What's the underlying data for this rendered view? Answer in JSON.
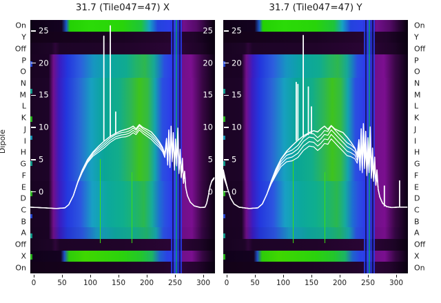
{
  "figure": {
    "ylabel": "Dipole",
    "background": "#ffffff",
    "text_color": "#1a1a1a",
    "curve_color": "#ffffff"
  },
  "dipole_labels": [
    "On",
    "Y",
    "Off",
    "P",
    "O",
    "N",
    "M",
    "L",
    "K",
    "J",
    "I",
    "H",
    "G",
    "F",
    "E",
    "D",
    "C",
    "B",
    "A",
    "Off",
    "X",
    "On"
  ],
  "xtick_labels": [
    "0",
    "50",
    "100",
    "150",
    "200",
    "250",
    "300"
  ],
  "inner_ytick_values": [
    25,
    20,
    15,
    10,
    5,
    0
  ],
  "chart_data": [
    {
      "type": "heatmap",
      "title": "31.7 (Tile047=47) X",
      "x_axis": {
        "ticks": [
          0,
          50,
          100,
          150,
          200,
          250,
          300
        ],
        "range": [
          -6,
          320.7
        ]
      },
      "y_categories": [
        "On",
        "Y",
        "Off",
        "P",
        "O",
        "N",
        "M",
        "L",
        "K",
        "J",
        "I",
        "H",
        "G",
        "F",
        "E",
        "D",
        "C",
        "B",
        "A",
        "Off",
        "X",
        "On"
      ],
      "overlay_axis": {
        "ticks": [
          25,
          20,
          15,
          10,
          5,
          0
        ]
      },
      "right_inner_ticks": true,
      "line_main": [
        [
          -6,
          -2.4
        ],
        [
          20,
          -2.5
        ],
        [
          40,
          -2.6
        ],
        [
          55,
          -2.5
        ],
        [
          62,
          -2.0
        ],
        [
          70,
          -0.6
        ],
        [
          78,
          1.6
        ],
        [
          86,
          3.4
        ],
        [
          95,
          5.0
        ],
        [
          105,
          6.2
        ],
        [
          115,
          7.1
        ],
        [
          125,
          7.9
        ],
        [
          135,
          8.6
        ],
        [
          145,
          9.1
        ],
        [
          155,
          9.5
        ],
        [
          163,
          9.7
        ],
        [
          170,
          9.9
        ],
        [
          176,
          10.2
        ],
        [
          181,
          9.8
        ],
        [
          187,
          10.45
        ],
        [
          193,
          10.0
        ],
        [
          200,
          9.7
        ],
        [
          208,
          9.3
        ],
        [
          215,
          8.6
        ],
        [
          222,
          7.8
        ],
        [
          228,
          6.9
        ],
        [
          232,
          5.9
        ],
        [
          235,
          8.3
        ],
        [
          237,
          4.6
        ],
        [
          239,
          9.6
        ],
        [
          241,
          4.2
        ],
        [
          243,
          10.2
        ],
        [
          245,
          5.3
        ],
        [
          247,
          9.2
        ],
        [
          249,
          3.8
        ],
        [
          251,
          8.2
        ],
        [
          253,
          4.6
        ],
        [
          255,
          9.9
        ],
        [
          257,
          3.2
        ],
        [
          259,
          6.6
        ],
        [
          261,
          2.4
        ],
        [
          263,
          5.2
        ],
        [
          265,
          1.4
        ],
        [
          267,
          3.2
        ],
        [
          269,
          0.6
        ],
        [
          272,
          -0.6
        ],
        [
          277,
          -1.6
        ],
        [
          284,
          -2.2
        ],
        [
          295,
          -2.45
        ],
        [
          303,
          -2.4
        ],
        [
          306,
          -1.8
        ],
        [
          309,
          -0.6
        ],
        [
          312,
          0.8
        ],
        [
          315,
          1.7
        ],
        [
          319,
          2.2
        ]
      ],
      "line_spikes": [
        [
          124,
          24.2,
          8.0
        ],
        [
          135.5,
          25.8,
          8.6
        ],
        [
          145,
          12.4,
          9.1
        ]
      ],
      "sub_traces": [
        {
          "dy": -0.3,
          "amp": 0.12
        },
        {
          "dy": -0.65,
          "amp": 0.12
        },
        {
          "dy": -1.0,
          "amp": 0.15
        }
      ]
    },
    {
      "type": "heatmap",
      "title": "31.7 (Tile047=47) Y",
      "x_axis": {
        "ticks": [
          0,
          50,
          100,
          150,
          200,
          250,
          300
        ],
        "range": [
          -6,
          320.7
        ]
      },
      "y_categories": [
        "On",
        "Y",
        "Off",
        "P",
        "O",
        "N",
        "M",
        "L",
        "K",
        "J",
        "I",
        "H",
        "G",
        "F",
        "E",
        "D",
        "C",
        "B",
        "A",
        "Off",
        "X",
        "On"
      ],
      "overlay_axis": {
        "ticks": [
          25,
          20,
          15,
          10,
          5,
          0
        ]
      },
      "right_inner_ticks": false,
      "line_main": [
        [
          -6,
          3.4
        ],
        [
          -2,
          1.8
        ],
        [
          2,
          0.4
        ],
        [
          7,
          -1.0
        ],
        [
          13,
          -1.9
        ],
        [
          22,
          -2.4
        ],
        [
          40,
          -2.6
        ],
        [
          55,
          -2.5
        ],
        [
          63,
          -1.9
        ],
        [
          71,
          -0.4
        ],
        [
          79,
          1.7
        ],
        [
          87,
          3.5
        ],
        [
          96,
          5.1
        ],
        [
          106,
          6.3
        ],
        [
          116,
          7.2
        ],
        [
          126,
          8.0
        ],
        [
          136,
          8.7
        ],
        [
          146,
          9.2
        ],
        [
          154,
          9.5
        ],
        [
          161,
          9.3
        ],
        [
          167,
          9.8
        ],
        [
          173,
          10.2
        ],
        [
          179,
          9.7
        ],
        [
          185,
          10.3
        ],
        [
          191,
          9.8
        ],
        [
          198,
          9.5
        ],
        [
          206,
          9.2
        ],
        [
          213,
          8.5
        ],
        [
          220,
          7.7
        ],
        [
          227,
          6.8
        ],
        [
          231,
          5.8
        ],
        [
          234,
          8.1
        ],
        [
          236,
          4.4
        ],
        [
          238,
          9.8
        ],
        [
          240,
          4.0
        ],
        [
          242,
          10.6
        ],
        [
          244,
          5.1
        ],
        [
          246,
          9.4
        ],
        [
          248,
          3.6
        ],
        [
          250,
          8.4
        ],
        [
          252,
          4.4
        ],
        [
          254,
          10.1
        ],
        [
          256,
          3.0
        ],
        [
          258,
          6.8
        ],
        [
          260,
          2.2
        ],
        [
          262,
          5.4
        ],
        [
          264,
          1.2
        ],
        [
          266,
          3.4
        ],
        [
          268,
          0.4
        ],
        [
          271,
          -0.8
        ],
        [
          276,
          -1.8
        ],
        [
          283,
          -2.3
        ],
        [
          292,
          -2.45
        ],
        [
          302,
          -2.4
        ],
        [
          312,
          -2.4
        ],
        [
          319,
          -2.4
        ]
      ],
      "line_spikes": [
        [
          123,
          17.0,
          8.0
        ],
        [
          126,
          16.7,
          8.1
        ],
        [
          135.5,
          24.3,
          8.6
        ],
        [
          144.5,
          16.3,
          8.9
        ],
        [
          150,
          13.2,
          9.1
        ],
        [
          279,
          0.9,
          -2.2
        ],
        [
          306,
          1.7,
          -2.3
        ]
      ],
      "sub_traces": [
        {
          "dy": -0.5,
          "amp": 0.45
        },
        {
          "dy": -1.1,
          "amp": 0.45
        },
        {
          "dy": -1.8,
          "amp": 0.45
        },
        {
          "dy": -2.5,
          "amp": 0.45
        }
      ]
    }
  ],
  "heatmap": {
    "row_types": [
      "band_on",
      "dark",
      "off_dark",
      "block_a",
      "block_a",
      "block_b",
      "block_b",
      "block_b",
      "block_b",
      "block_b",
      "block_b",
      "block_b",
      "block_b",
      "block_b",
      "block_c",
      "block_c",
      "block_c",
      "block_c",
      "block_d",
      "off_dark",
      "band_x",
      "dark_bottom"
    ],
    "templates": {
      "band_on": [
        [
          0,
          "#0e0116"
        ],
        [
          0.17,
          "#140220"
        ],
        [
          0.195,
          "#1b57c8"
        ],
        [
          0.215,
          "#24d104"
        ],
        [
          0.33,
          "#2bda08"
        ],
        [
          0.5,
          "#28d409"
        ],
        [
          0.6,
          "#1ec43a"
        ],
        [
          0.645,
          "#16a2c2"
        ],
        [
          0.69,
          "#2343dd"
        ],
        [
          0.755,
          "#2c3fe8"
        ],
        [
          0.805,
          "#4a0b6a"
        ],
        [
          0.83,
          "#72108c"
        ],
        [
          0.9,
          "#550b68"
        ],
        [
          0.95,
          "#2a0536"
        ],
        [
          1,
          "#07010c"
        ]
      ],
      "dark": [
        [
          0,
          "#130218"
        ],
        [
          0.5,
          "#1a0322"
        ],
        [
          0.78,
          "#26052f"
        ],
        [
          0.88,
          "#20042a"
        ],
        [
          1,
          "#0a0110"
        ]
      ],
      "off_dark": [
        [
          0,
          "#170320"
        ],
        [
          0.115,
          "#1d0427"
        ],
        [
          0.135,
          "#2e0639"
        ],
        [
          0.16,
          "#1d0427"
        ],
        [
          0.5,
          "#200429"
        ],
        [
          0.8,
          "#2b0536"
        ],
        [
          0.92,
          "#1e0427"
        ],
        [
          1,
          "#0a0110"
        ]
      ],
      "block_a": [
        [
          0,
          "#190322"
        ],
        [
          0.1,
          "#1b0325"
        ],
        [
          0.125,
          "#70108a"
        ],
        [
          0.16,
          "#3a1dc2"
        ],
        [
          0.2,
          "#2336dd"
        ],
        [
          0.27,
          "#2c5ede"
        ],
        [
          0.34,
          "#1795c2"
        ],
        [
          0.42,
          "#0ba4a2"
        ],
        [
          0.52,
          "#10ab90"
        ],
        [
          0.57,
          "#22b36a"
        ],
        [
          0.62,
          "#2eb74e"
        ],
        [
          0.67,
          "#17a896"
        ],
        [
          0.7,
          "#1b7cc0"
        ],
        [
          0.725,
          "#2a50e0"
        ],
        [
          0.76,
          "#2c3fe8"
        ],
        [
          0.815,
          "#70108a"
        ],
        [
          0.87,
          "#7c0f90"
        ],
        [
          0.93,
          "#3a0747"
        ],
        [
          1,
          "#0b0113"
        ]
      ],
      "block_b": [
        [
          0,
          "#1b0424"
        ],
        [
          0.1,
          "#1d0428"
        ],
        [
          0.125,
          "#72108c"
        ],
        [
          0.155,
          "#3b1cc0"
        ],
        [
          0.195,
          "#2336dd"
        ],
        [
          0.26,
          "#2b62d8"
        ],
        [
          0.33,
          "#17a0c0"
        ],
        [
          0.4,
          "#0aa596"
        ],
        [
          0.48,
          "#12ad8a"
        ],
        [
          0.545,
          "#2eb654"
        ],
        [
          0.59,
          "#3ec31e"
        ],
        [
          0.635,
          "#35bb42"
        ],
        [
          0.675,
          "#14a3ae"
        ],
        [
          0.715,
          "#2a50e0"
        ],
        [
          0.755,
          "#2c3fe8"
        ],
        [
          0.81,
          "#72108c"
        ],
        [
          0.875,
          "#7a0f8f"
        ],
        [
          0.93,
          "#3a0746"
        ],
        [
          1,
          "#0c0113"
        ]
      ],
      "block_c": [
        [
          0,
          "#190322"
        ],
        [
          0.1,
          "#1b0325"
        ],
        [
          0.125,
          "#70108a"
        ],
        [
          0.16,
          "#3a1dc2"
        ],
        [
          0.2,
          "#2438de"
        ],
        [
          0.27,
          "#2c55e0"
        ],
        [
          0.335,
          "#18a0c4"
        ],
        [
          0.42,
          "#0ca89c"
        ],
        [
          0.5,
          "#0fae8e"
        ],
        [
          0.56,
          "#1cb373"
        ],
        [
          0.615,
          "#2ab84e"
        ],
        [
          0.66,
          "#16aa9e"
        ],
        [
          0.7,
          "#1e6ed2"
        ],
        [
          0.73,
          "#2a50e0"
        ],
        [
          0.76,
          "#2c3fe8"
        ],
        [
          0.815,
          "#70108a"
        ],
        [
          0.875,
          "#7a0f8f"
        ],
        [
          0.93,
          "#380744"
        ],
        [
          1,
          "#0b0113"
        ]
      ],
      "block_d": [
        [
          0,
          "#180321"
        ],
        [
          0.1,
          "#1a0324"
        ],
        [
          0.125,
          "#6a0f82"
        ],
        [
          0.16,
          "#371bb8"
        ],
        [
          0.2,
          "#2336d2"
        ],
        [
          0.28,
          "#2a52d8"
        ],
        [
          0.36,
          "#1895bd"
        ],
        [
          0.46,
          "#0ea09a"
        ],
        [
          0.56,
          "#14a88a"
        ],
        [
          0.63,
          "#1fae68"
        ],
        [
          0.68,
          "#15a0a8"
        ],
        [
          0.72,
          "#2a50dc"
        ],
        [
          0.76,
          "#2c3fe0"
        ],
        [
          0.815,
          "#6c0e86"
        ],
        [
          0.875,
          "#760e8a"
        ],
        [
          0.93,
          "#340642"
        ],
        [
          1,
          "#0b0113"
        ]
      ],
      "band_x": [
        [
          0,
          "#10011a"
        ],
        [
          0.165,
          "#140220"
        ],
        [
          0.185,
          "#2050c8"
        ],
        [
          0.21,
          "#2ecb0a"
        ],
        [
          0.3,
          "#3fd701"
        ],
        [
          0.5,
          "#2bd20d"
        ],
        [
          0.6,
          "#23c62c"
        ],
        [
          0.66,
          "#1bb465"
        ],
        [
          0.7,
          "#1f64cc"
        ],
        [
          0.74,
          "#2a43e4"
        ],
        [
          0.77,
          "#2c3fe8"
        ],
        [
          0.815,
          "#70108a"
        ],
        [
          0.875,
          "#7a0f8f"
        ],
        [
          0.93,
          "#380745"
        ],
        [
          1,
          "#0a0111"
        ]
      ],
      "dark_bottom": [
        [
          0,
          "#120217"
        ],
        [
          0.4,
          "#190320"
        ],
        [
          0.72,
          "#22042c"
        ],
        [
          0.82,
          "#2c0537"
        ],
        [
          0.9,
          "#24042e"
        ],
        [
          1,
          "#090110"
        ]
      ]
    },
    "stripes": [
      [
        0.76,
        2,
        "#2a3bee",
        0.85
      ],
      [
        0.769,
        2,
        "#0f135c",
        0.8
      ],
      [
        0.777,
        3,
        "#2e3ff0",
        0.9
      ],
      [
        0.787,
        2,
        "#0c9184",
        0.9
      ],
      [
        0.795,
        3,
        "#2436d8",
        0.85
      ],
      [
        0.806,
        2,
        "#0f135c",
        0.8
      ],
      [
        0.814,
        2,
        "#2a3bee",
        0.85
      ]
    ],
    "partial_lines": [
      [
        0.377,
        1,
        "#3adf10",
        0.55,
        0.88
      ],
      [
        0.547,
        1,
        "#3adf10",
        0.6,
        0.88
      ]
    ],
    "edge_ticks": [
      [
        60,
        8,
        "#2a50e0"
      ],
      [
        100,
        7,
        "#12a796"
      ],
      [
        140,
        8,
        "#2bc41e"
      ],
      [
        168,
        6,
        "#18a0c0"
      ],
      [
        205,
        7,
        "#12a796"
      ],
      [
        248,
        8,
        "#2bc41e"
      ],
      [
        282,
        6,
        "#2a50e0"
      ],
      [
        310,
        7,
        "#12a796"
      ],
      [
        340,
        8,
        "#2bc41e"
      ]
    ]
  }
}
